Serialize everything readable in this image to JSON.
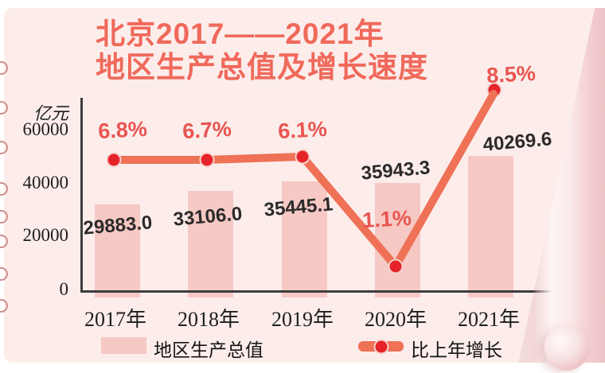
{
  "title": {
    "line1": "北京2017——2021年",
    "line2": "地区生产总值及增长速度"
  },
  "y_axis": {
    "unit": "亿元",
    "ticks": [
      "60000",
      "40000",
      "20000",
      "0"
    ]
  },
  "chart_data": {
    "type": "bar+line",
    "categories": [
      "2017年",
      "2018年",
      "2019年",
      "2020年",
      "2021年"
    ],
    "series": [
      {
        "name": "地区生产总值",
        "type": "bar",
        "unit": "亿元",
        "values": [
          29883.0,
          33106.0,
          35445.1,
          35943.3,
          40269.6
        ],
        "labels": [
          "29883.0",
          "33106.0",
          "35445.1",
          "35943.3",
          "40269.6"
        ]
      },
      {
        "name": "比上年增长",
        "type": "line",
        "unit": "%",
        "values": [
          6.8,
          6.7,
          6.1,
          1.1,
          8.5
        ],
        "labels": [
          "6.8%",
          "6.7%",
          "6.1%",
          "1.1%",
          "8.5%"
        ]
      }
    ],
    "ylim": [
      0,
      60000
    ],
    "grid": false,
    "legend_position": "bottom"
  },
  "legend": {
    "bar_label": "地区生产总值",
    "line_label": "比上年增长"
  },
  "colors": {
    "paper": "#fcedeb",
    "title": "#f0695b",
    "bar_fill": "#f6c9c4",
    "line": "#ef7156",
    "dot": "#e52329",
    "dot_ring": "#f6d2cc",
    "percent_text": "#e95550",
    "value_text": "#2b2a2a",
    "axis": "#3d3d3d",
    "binder_ring": "#d08d8d"
  }
}
